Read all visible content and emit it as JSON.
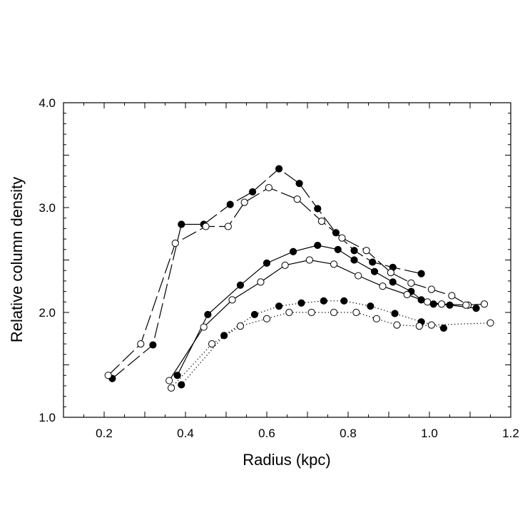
{
  "chart_data": {
    "type": "line",
    "title": "",
    "xlabel": "Radius (kpc)",
    "ylabel": "Relative column density",
    "xlim": [
      0.1,
      1.2
    ],
    "ylim": [
      1.0,
      4.0
    ],
    "xticks": [
      0.2,
      0.4,
      0.6,
      0.8,
      1.0,
      1.2
    ],
    "xtick_labels": [
      "0.2",
      "0.4",
      "0.6",
      "0.8",
      "1.0",
      "1.2"
    ],
    "yticks": [
      1.0,
      2.0,
      3.0,
      4.0
    ],
    "ytick_labels": [
      "1.0",
      "2.0",
      "3.0",
      "4.0"
    ],
    "grid": false,
    "legend": "none",
    "series": [
      {
        "name": "dashed-filled",
        "line_style": "long-dash",
        "marker": "filled-circle",
        "x": [
          0.22,
          0.32,
          0.39,
          0.445,
          0.51,
          0.565,
          0.63,
          0.68,
          0.725,
          0.77,
          0.815,
          0.86,
          0.91,
          0.98
        ],
        "y": [
          1.37,
          1.69,
          2.84,
          2.84,
          3.03,
          3.15,
          3.37,
          3.23,
          2.99,
          2.76,
          2.59,
          2.48,
          2.43,
          2.37
        ]
      },
      {
        "name": "dashed-open",
        "line_style": "long-dash",
        "marker": "open-circle",
        "x": [
          0.21,
          0.29,
          0.375,
          0.45,
          0.505,
          0.545,
          0.605,
          0.675,
          0.735,
          0.785,
          0.845,
          0.905,
          0.955,
          1.005,
          1.055,
          1.095
        ],
        "y": [
          1.4,
          1.7,
          2.66,
          2.82,
          2.82,
          3.05,
          3.19,
          3.08,
          2.87,
          2.71,
          2.59,
          2.38,
          2.28,
          2.22,
          2.16,
          2.07
        ]
      },
      {
        "name": "solid-filled",
        "line_style": "solid",
        "marker": "filled-circle",
        "x": [
          0.38,
          0.455,
          0.535,
          0.6,
          0.665,
          0.725,
          0.775,
          0.815,
          0.865,
          0.91,
          0.955,
          0.98,
          1.01,
          1.05,
          1.115
        ],
        "y": [
          1.4,
          1.98,
          2.26,
          2.47,
          2.58,
          2.64,
          2.6,
          2.5,
          2.39,
          2.29,
          2.2,
          2.12,
          2.08,
          2.07,
          2.04
        ]
      },
      {
        "name": "solid-open",
        "line_style": "solid",
        "marker": "open-circle",
        "x": [
          0.36,
          0.445,
          0.515,
          0.585,
          0.645,
          0.705,
          0.765,
          0.825,
          0.885,
          0.945,
          0.995,
          1.03,
          1.09,
          1.135
        ],
        "y": [
          1.35,
          1.86,
          2.12,
          2.29,
          2.45,
          2.5,
          2.46,
          2.35,
          2.25,
          2.17,
          2.1,
          2.08,
          2.07,
          2.08
        ]
      },
      {
        "name": "dotted-filled",
        "line_style": "dotted",
        "marker": "filled-circle",
        "x": [
          0.39,
          0.495,
          0.57,
          0.63,
          0.685,
          0.74,
          0.79,
          0.855,
          0.915,
          0.98,
          1.035
        ],
        "y": [
          1.31,
          1.78,
          1.98,
          2.06,
          2.09,
          2.11,
          2.11,
          2.06,
          1.99,
          1.91,
          1.85
        ]
      },
      {
        "name": "dotted-open",
        "line_style": "dotted",
        "marker": "open-circle",
        "x": [
          0.365,
          0.465,
          0.535,
          0.6,
          0.655,
          0.71,
          0.765,
          0.82,
          0.87,
          0.92,
          0.975,
          1.005,
          1.15
        ],
        "y": [
          1.28,
          1.7,
          1.87,
          1.94,
          2.0,
          2.0,
          2.0,
          2.0,
          1.94,
          1.88,
          1.87,
          1.88,
          1.9
        ]
      }
    ]
  }
}
